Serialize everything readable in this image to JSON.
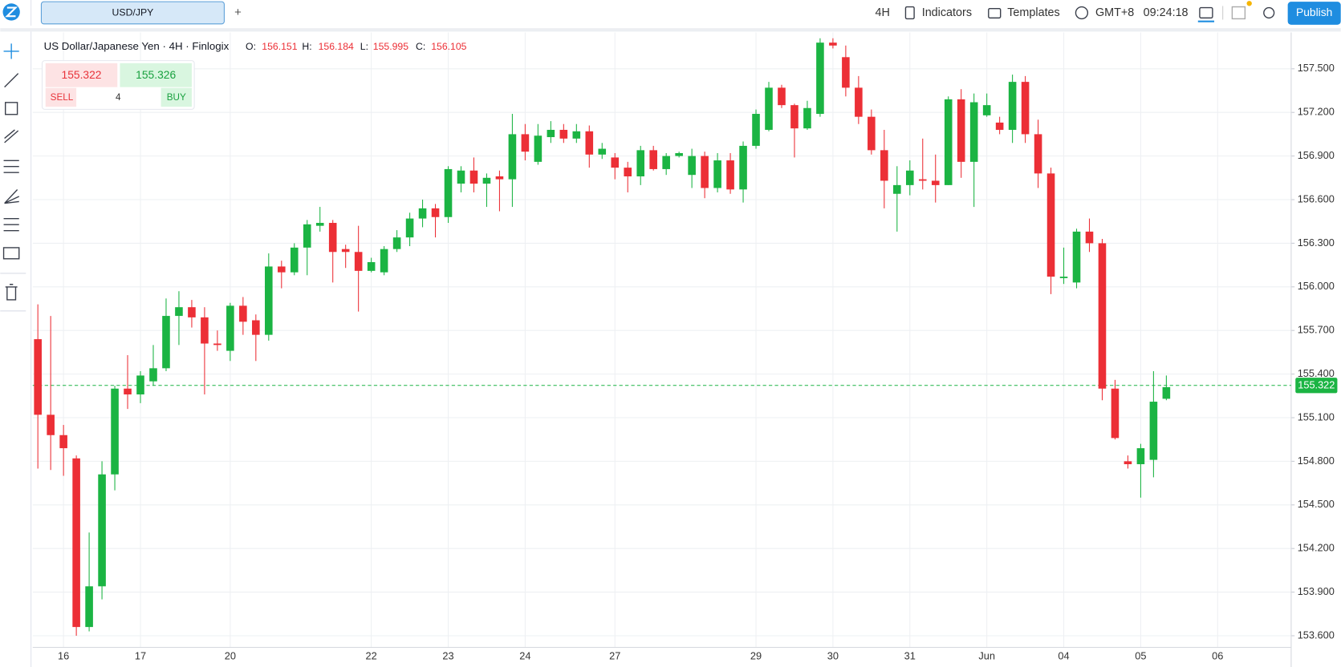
{
  "toolbar": {
    "symbol_tab": "USD/JPY",
    "add_tab": "+",
    "timeframe": "4H",
    "indicators": "Indicators",
    "templates": "Templates",
    "timezone": "GMT+8",
    "clock": "09:24:18",
    "publish": "Publish"
  },
  "trade_panel": {
    "sell_price": "155.322",
    "buy_price": "155.326",
    "sell": "SELL",
    "quantity": "4",
    "buy": "BUY"
  },
  "chart_data": {
    "type": "candlestick",
    "title": "US Dollar/Japanese Yen · 4H · Finlogix",
    "ohlc_legend": [
      {
        "label": "O:",
        "value": "156.151"
      },
      {
        "label": "H:",
        "value": "156.184"
      },
      {
        "label": "L:",
        "value": "155.995"
      },
      {
        "label": "C:",
        "value": "156.105"
      }
    ],
    "categories": [
      null,
      null,
      "16",
      null,
      null,
      null,
      null,
      null,
      "17",
      null,
      null,
      null,
      null,
      null,
      null,
      "20",
      null,
      null,
      null,
      null,
      null,
      null,
      null,
      null,
      null,
      null,
      "22",
      null,
      null,
      null,
      null,
      null,
      "23",
      null,
      null,
      null,
      null,
      null,
      "24",
      null,
      null,
      null,
      null,
      null,
      null,
      "27",
      null,
      null,
      null,
      null,
      null,
      null,
      null,
      null,
      null,
      null,
      "29",
      null,
      null,
      null,
      null,
      null,
      "30",
      null,
      null,
      null,
      null,
      null,
      "31",
      null,
      null,
      null,
      null,
      null,
      "Jun",
      null,
      null,
      null,
      null,
      null,
      "04",
      null,
      null,
      null,
      null,
      null,
      "05",
      null,
      null,
      null,
      null,
      null,
      "06",
      null,
      null,
      null,
      null,
      null
    ],
    "open": [
      155.64,
      155.12,
      154.98,
      154.82,
      153.66,
      153.94,
      154.71,
      155.3,
      155.26,
      155.35,
      155.44,
      155.8,
      155.86,
      155.79,
      155.61,
      155.56,
      155.87,
      155.77,
      155.67,
      156.14,
      156.1,
      156.27,
      156.42,
      156.44,
      156.26,
      156.24,
      156.11,
      156.1,
      156.26,
      156.34,
      156.47,
      156.54,
      156.48,
      156.71,
      156.8,
      156.71,
      156.76,
      156.74,
      157.05,
      156.86,
      157.03,
      157.08,
      157.02,
      157.07,
      156.91,
      156.89,
      156.82,
      156.76,
      156.94,
      156.81,
      156.9,
      156.77,
      156.9,
      156.68,
      156.87,
      156.67,
      156.97,
      157.08,
      157.37,
      157.25,
      157.09,
      157.19,
      157.68,
      157.58,
      157.37,
      157.17,
      156.94,
      156.64,
      156.7,
      156.74,
      156.73,
      156.7,
      157.29,
      156.86,
      157.18,
      157.13,
      157.08,
      157.41,
      157.05,
      156.78,
      156.06,
      156.03,
      156.38,
      156.3,
      155.3,
      154.8,
      154.78,
      154.81,
      155.23,
      null,
      null,
      null,
      null,
      null,
      null,
      null,
      null,
      null
    ],
    "high": [
      155.88,
      155.8,
      155.05,
      154.84,
      154.31,
      154.8,
      155.32,
      155.53,
      155.42,
      155.6,
      155.92,
      155.97,
      155.91,
      155.86,
      155.7,
      155.89,
      155.93,
      155.81,
      156.23,
      156.18,
      156.3,
      156.46,
      156.55,
      156.46,
      156.29,
      156.42,
      156.2,
      156.28,
      156.39,
      156.51,
      156.6,
      156.57,
      156.83,
      156.83,
      156.89,
      156.78,
      156.8,
      157.19,
      157.12,
      157.12,
      157.14,
      157.12,
      157.12,
      157.11,
      156.99,
      156.92,
      156.86,
      156.97,
      156.97,
      156.92,
      156.93,
      156.95,
      156.93,
      156.92,
      156.92,
      157.0,
      157.22,
      157.41,
      157.39,
      157.26,
      157.28,
      157.71,
      157.71,
      157.66,
      157.45,
      157.22,
      157.08,
      156.83,
      156.87,
      157.02,
      156.91,
      157.31,
      157.36,
      157.33,
      157.33,
      157.17,
      157.46,
      157.45,
      157.15,
      156.82,
      156.27,
      156.4,
      156.47,
      156.33,
      155.36,
      154.84,
      154.92,
      155.42,
      155.39,
      null,
      null,
      null,
      null,
      null,
      null,
      null,
      null,
      null
    ],
    "low": [
      154.75,
      154.74,
      154.7,
      153.6,
      153.63,
      153.85,
      154.6,
      155.16,
      155.2,
      155.32,
      155.42,
      155.6,
      155.72,
      155.26,
      155.56,
      155.49,
      155.67,
      155.49,
      155.63,
      155.99,
      156.08,
      156.08,
      156.38,
      156.03,
      156.13,
      155.83,
      156.1,
      156.08,
      156.24,
      156.28,
      156.41,
      156.34,
      156.44,
      156.65,
      156.65,
      156.55,
      156.52,
      156.55,
      156.87,
      156.84,
      156.99,
      156.99,
      156.99,
      156.82,
      156.88,
      156.74,
      156.65,
      156.7,
      156.8,
      156.77,
      156.89,
      156.68,
      156.61,
      156.65,
      156.64,
      156.58,
      156.95,
      157.07,
      157.23,
      156.89,
      157.08,
      157.17,
      157.64,
      157.31,
      157.12,
      156.91,
      156.54,
      156.38,
      156.63,
      156.67,
      156.58,
      156.7,
      156.75,
      156.55,
      157.17,
      157.05,
      156.99,
      156.99,
      156.68,
      155.95,
      156.02,
      155.99,
      156.24,
      155.22,
      154.95,
      154.75,
      154.55,
      154.69,
      155.22,
      null,
      null,
      null,
      null,
      null,
      null,
      null,
      null,
      null
    ],
    "close": [
      155.12,
      154.98,
      154.89,
      153.66,
      153.94,
      154.71,
      155.3,
      155.26,
      155.39,
      155.44,
      155.8,
      155.86,
      155.79,
      155.61,
      155.6,
      155.87,
      155.76,
      155.67,
      156.14,
      156.1,
      156.27,
      156.43,
      156.44,
      156.24,
      156.24,
      156.11,
      156.17,
      156.26,
      156.34,
      156.47,
      156.54,
      156.48,
      156.81,
      156.8,
      156.71,
      156.75,
      156.74,
      157.05,
      156.93,
      157.04,
      157.08,
      157.02,
      157.07,
      156.91,
      156.95,
      156.82,
      156.76,
      156.94,
      156.81,
      156.9,
      156.92,
      156.9,
      156.68,
      156.87,
      156.67,
      156.97,
      157.19,
      157.37,
      157.25,
      157.09,
      157.23,
      157.68,
      157.66,
      157.37,
      157.17,
      156.94,
      156.73,
      156.7,
      156.8,
      156.73,
      156.7,
      157.29,
      156.86,
      157.27,
      157.25,
      157.08,
      157.41,
      157.05,
      156.78,
      156.07,
      156.07,
      156.38,
      156.3,
      155.3,
      154.96,
      154.78,
      154.89,
      155.21,
      155.31,
      null,
      null,
      null,
      null,
      null,
      null,
      null,
      null,
      null
    ],
    "up_color": "#1bb443",
    "down_color": "#ec2f36",
    "ylim": [
      153.52,
      157.75
    ],
    "yticks": [
      {
        "value": 153.6,
        "label": "153.600"
      },
      {
        "value": 153.9,
        "label": "153.900"
      },
      {
        "value": 154.2,
        "label": "154.200"
      },
      {
        "value": 154.5,
        "label": "154.500"
      },
      {
        "value": 154.8,
        "label": "154.800"
      },
      {
        "value": 155.1,
        "label": "155.100"
      },
      {
        "value": 155.4,
        "label": "155.400"
      },
      {
        "value": 155.7,
        "label": "155.700"
      },
      {
        "value": 156.0,
        "label": "156.000"
      },
      {
        "value": 156.3,
        "label": "156.300"
      },
      {
        "value": 156.6,
        "label": "156.600"
      },
      {
        "value": 156.9,
        "label": "156.900"
      },
      {
        "value": 157.2,
        "label": "157.200"
      },
      {
        "value": 157.5,
        "label": "157.500"
      }
    ],
    "grid": true,
    "last_price": 155.322,
    "last_price_color": "#1bb443"
  }
}
